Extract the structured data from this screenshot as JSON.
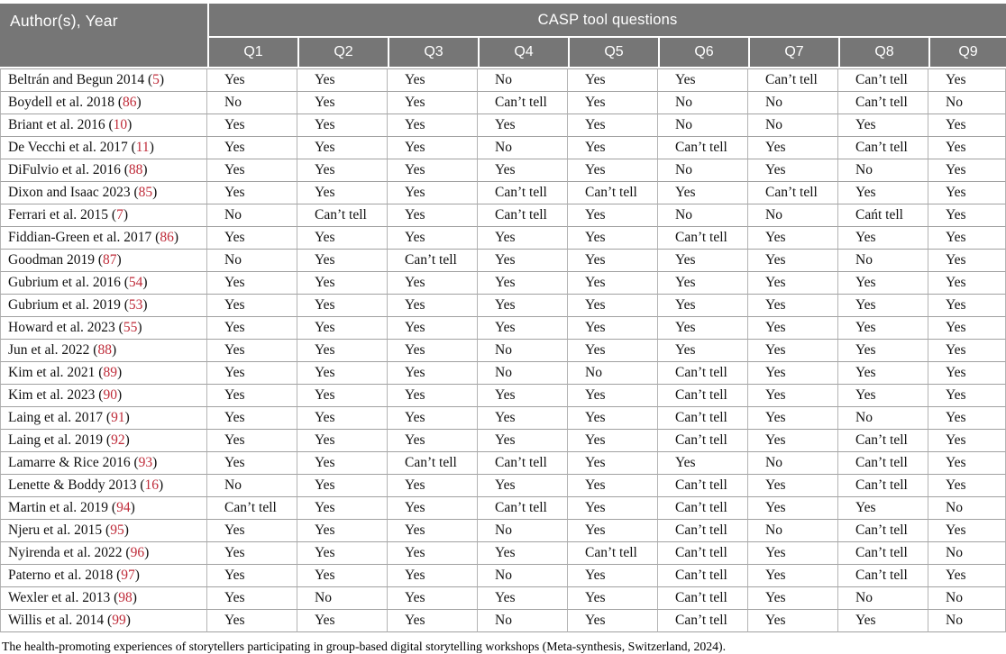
{
  "table": {
    "author_header": "Author(s), Year",
    "group_header": "CASP tool questions",
    "q_headers": [
      "Q1",
      "Q2",
      "Q3",
      "Q4",
      "Q5",
      "Q6",
      "Q7",
      "Q8",
      "Q9"
    ],
    "rows": [
      {
        "author": "Beltrán and Begun 2014",
        "ref": "5",
        "answers": [
          "Yes",
          "Yes",
          "Yes",
          "No",
          "Yes",
          "Yes",
          "Can’t tell",
          "Can’t tell",
          "Yes"
        ]
      },
      {
        "author": "Boydell et al. 2018",
        "ref": "86",
        "answers": [
          "No",
          "Yes",
          "Yes",
          "Can’t tell",
          "Yes",
          "No",
          "No",
          "Can’t tell",
          "No"
        ]
      },
      {
        "author": "Briant et al. 2016",
        "ref": "10",
        "answers": [
          "Yes",
          "Yes",
          "Yes",
          "Yes",
          "Yes",
          "No",
          "No",
          "Yes",
          "Yes"
        ]
      },
      {
        "author": "De Vecchi et al. 2017",
        "ref": "11",
        "answers": [
          "Yes",
          "Yes",
          "Yes",
          "No",
          "Yes",
          "Can’t tell",
          "Yes",
          "Can’t tell",
          "Yes"
        ]
      },
      {
        "author": "DiFulvio et al. 2016",
        "ref": "88",
        "answers": [
          "Yes",
          "Yes",
          "Yes",
          "Yes",
          "Yes",
          "No",
          "Yes",
          "No",
          "Yes"
        ]
      },
      {
        "author": "Dixon and Isaac 2023",
        "ref": "85",
        "answers": [
          "Yes",
          "Yes",
          "Yes",
          "Can’t tell",
          "Can’t tell",
          "Yes",
          "Can’t tell",
          "Yes",
          "Yes"
        ]
      },
      {
        "author": "Ferrari et al. 2015",
        "ref": "7",
        "answers": [
          "No",
          "Can’t tell",
          "Yes",
          "Can’t tell",
          "Yes",
          "No",
          "No",
          "Cańt tell",
          "Yes"
        ]
      },
      {
        "author": "Fiddian-Green et al. 2017",
        "ref": "86",
        "answers": [
          "Yes",
          "Yes",
          "Yes",
          "Yes",
          "Yes",
          "Can’t tell",
          "Yes",
          "Yes",
          "Yes"
        ]
      },
      {
        "author": "Goodman 2019",
        "ref": "87",
        "answers": [
          "No",
          "Yes",
          "Can’t tell",
          "Yes",
          "Yes",
          "Yes",
          "Yes",
          "No",
          "Yes"
        ]
      },
      {
        "author": "Gubrium et al. 2016",
        "ref": "54",
        "answers": [
          "Yes",
          "Yes",
          "Yes",
          "Yes",
          "Yes",
          "Yes",
          "Yes",
          "Yes",
          "Yes"
        ]
      },
      {
        "author": "Gubrium et al. 2019",
        "ref": "53",
        "answers": [
          "Yes",
          "Yes",
          "Yes",
          "Yes",
          "Yes",
          "Yes",
          "Yes",
          "Yes",
          "Yes"
        ]
      },
      {
        "author": "Howard et al. 2023",
        "ref": "55",
        "answers": [
          "Yes",
          "Yes",
          "Yes",
          "Yes",
          "Yes",
          "Yes",
          "Yes",
          "Yes",
          "Yes"
        ]
      },
      {
        "author": "Jun et al. 2022",
        "ref": "88",
        "answers": [
          "Yes",
          "Yes",
          "Yes",
          "No",
          "Yes",
          "Yes",
          "Yes",
          "Yes",
          "Yes"
        ]
      },
      {
        "author": "Kim et al. 2021",
        "ref": "89",
        "answers": [
          "Yes",
          "Yes",
          "Yes",
          "No",
          "No",
          "Can’t tell",
          "Yes",
          "Yes",
          "Yes"
        ]
      },
      {
        "author": "Kim et al. 2023",
        "ref": "90",
        "answers": [
          "Yes",
          "Yes",
          "Yes",
          "Yes",
          "Yes",
          "Can’t tell",
          "Yes",
          "Yes",
          "Yes"
        ]
      },
      {
        "author": "Laing et al. 2017",
        "ref": "91",
        "answers": [
          "Yes",
          "Yes",
          "Yes",
          "Yes",
          "Yes",
          "Can’t tell",
          "Yes",
          "No",
          "Yes"
        ]
      },
      {
        "author": "Laing et al. 2019",
        "ref": "92",
        "answers": [
          "Yes",
          "Yes",
          "Yes",
          "Yes",
          "Yes",
          "Can’t tell",
          "Yes",
          "Can’t tell",
          "Yes"
        ]
      },
      {
        "author": "Lamarre & Rice 2016",
        "ref": "93",
        "answers": [
          "Yes",
          "Yes",
          "Can’t tell",
          "Can’t tell",
          "Yes",
          "Yes",
          "No",
          "Can’t tell",
          "Yes"
        ]
      },
      {
        "author": "Lenette & Boddy 2013",
        "ref": "16",
        "answers": [
          "No",
          "Yes",
          "Yes",
          "Yes",
          "Yes",
          "Can’t tell",
          "Yes",
          "Can’t tell",
          "Yes"
        ]
      },
      {
        "author": "Martin et al. 2019",
        "ref": "94",
        "answers": [
          "Can’t tell",
          "Yes",
          "Yes",
          "Can’t tell",
          "Yes",
          "Can’t tell",
          "Yes",
          "Yes",
          "No"
        ]
      },
      {
        "author": "Njeru et al. 2015",
        "ref": "95",
        "answers": [
          "Yes",
          "Yes",
          "Yes",
          "No",
          "Yes",
          "Can’t tell",
          "No",
          "Can’t tell",
          "Yes"
        ]
      },
      {
        "author": "Nyirenda et al. 2022",
        "ref": "96",
        "answers": [
          "Yes",
          "Yes",
          "Yes",
          "Yes",
          "Can’t tell",
          "Can’t tell",
          "Yes",
          "Can’t tell",
          "No"
        ]
      },
      {
        "author": "Paterno et al. 2018",
        "ref": "97",
        "answers": [
          "Yes",
          "Yes",
          "Yes",
          "No",
          "Yes",
          "Can’t tell",
          "Yes",
          "Can’t tell",
          "Yes"
        ]
      },
      {
        "author": "Wexler et al. 2013",
        "ref": "98",
        "answers": [
          "Yes",
          "No",
          "Yes",
          "Yes",
          "Yes",
          "Can’t tell",
          "Yes",
          "No",
          "No"
        ]
      },
      {
        "author": "Willis et al. 2014",
        "ref": "99",
        "answers": [
          "Yes",
          "Yes",
          "Yes",
          "No",
          "Yes",
          "Can’t tell",
          "Yes",
          "Yes",
          "No"
        ]
      }
    ]
  },
  "caption": "The health-promoting experiences of storytellers participating in group-based digital storytelling workshops (Meta-synthesis, Switzerland, 2024).",
  "colors": {
    "header_bg": "#767676",
    "header_text": "#ffffff",
    "reference_red": "#bf2b39",
    "grid_line": "#a0a0a0"
  }
}
